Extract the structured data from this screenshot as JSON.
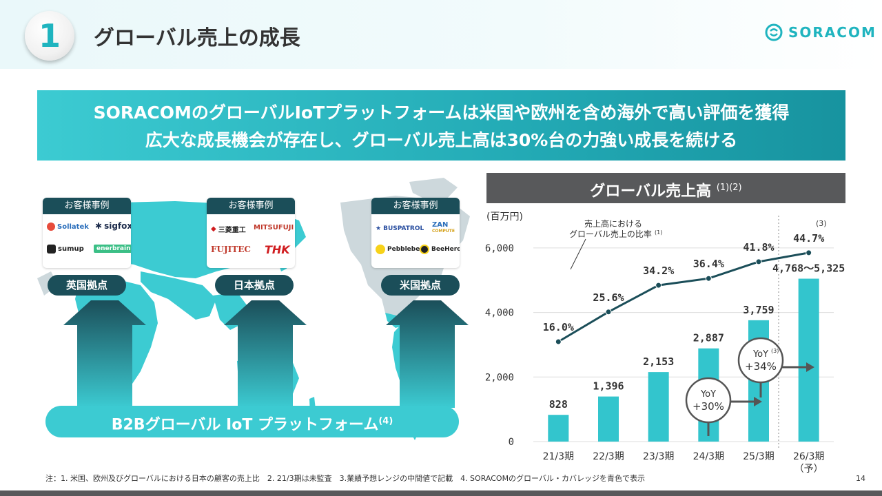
{
  "header": {
    "section_number": "1",
    "title": "グローバル売上の成長",
    "logo_text": "SORACOM"
  },
  "banner": {
    "line1": "SORACOMのグローバルIoTプラットフォームは米国や欧州を含め海外で高い評価を獲得",
    "line2": "広大な成長機会が存在し、グローバル売上高は30%台の力強い成長を続ける"
  },
  "map": {
    "case_boxes": [
      {
        "header": "お客様事例",
        "logos": [
          "Sollatek",
          "sigfox",
          "sumup",
          "enerbrain"
        ]
      },
      {
        "header": "お客様事例",
        "logos": [
          "三菱重工",
          "MITSUFUJI",
          "FUJITEC",
          "THK"
        ]
      },
      {
        "header": "お客様事例",
        "logos": [
          "BUSPATROL",
          "ZAN",
          "COMPUTE",
          "Pebblebee",
          "BeeHero"
        ]
      }
    ],
    "sites": [
      "英国拠点",
      "日本拠点",
      "米国拠点"
    ],
    "platform_label": "B2Bグローバル IoT プラットフォーム",
    "platform_note": "(4)",
    "colors": {
      "dark_teal": "#1b4e59",
      "accent": "#3ccbd2",
      "map_land": "#cdd8dc"
    }
  },
  "chart_data": {
    "type": "bar",
    "title": "グローバル売上高",
    "title_note": "(1)(2)",
    "unit_label": "(百万円)",
    "categories": [
      "21/3期",
      "22/3期",
      "23/3期",
      "24/3期",
      "25/3期",
      "26/3期"
    ],
    "category_sublabels": [
      "",
      "",
      "",
      "",
      "",
      "（予）"
    ],
    "values": [
      828,
      1396,
      2153,
      2887,
      3759,
      5046.5
    ],
    "value_labels": [
      "828",
      "1,396",
      "2,153",
      "2,887",
      "3,759",
      "4,768～5,325"
    ],
    "yticks": [
      0,
      2000,
      4000,
      6000
    ],
    "ytick_labels": [
      "0",
      "2,000",
      "4,000",
      "6,000"
    ],
    "ylim": [
      0,
      7000
    ],
    "line_series": {
      "name_line1": "売上高における",
      "name_line2": "グローバル売上の比率",
      "name_note": "(1)",
      "values": [
        16.0,
        25.6,
        34.2,
        36.4,
        41.8,
        44.7
      ],
      "labels": [
        "16.0%",
        "25.6%",
        "34.2%",
        "36.4%",
        "41.8%",
        "44.7%"
      ],
      "last_note": "(3)"
    },
    "annotations": [
      {
        "line1": "YoY",
        "line2": "+30%",
        "note": ""
      },
      {
        "line1": "YoY",
        "line2": "+34%",
        "note": "(3)"
      }
    ],
    "colors": {
      "bar": "#33c5cd",
      "line": "#1b4e59",
      "annotation": "#555555"
    }
  },
  "footer": {
    "note": "注：1. 米国、欧州及びグローバルにおける日本の顧客の売上比　2. 21/3期は未監査　3.業績予想レンジの中間値で記載　4. SORACOMのグローバル・カバレッジを青色で表示",
    "page_number": "14"
  }
}
